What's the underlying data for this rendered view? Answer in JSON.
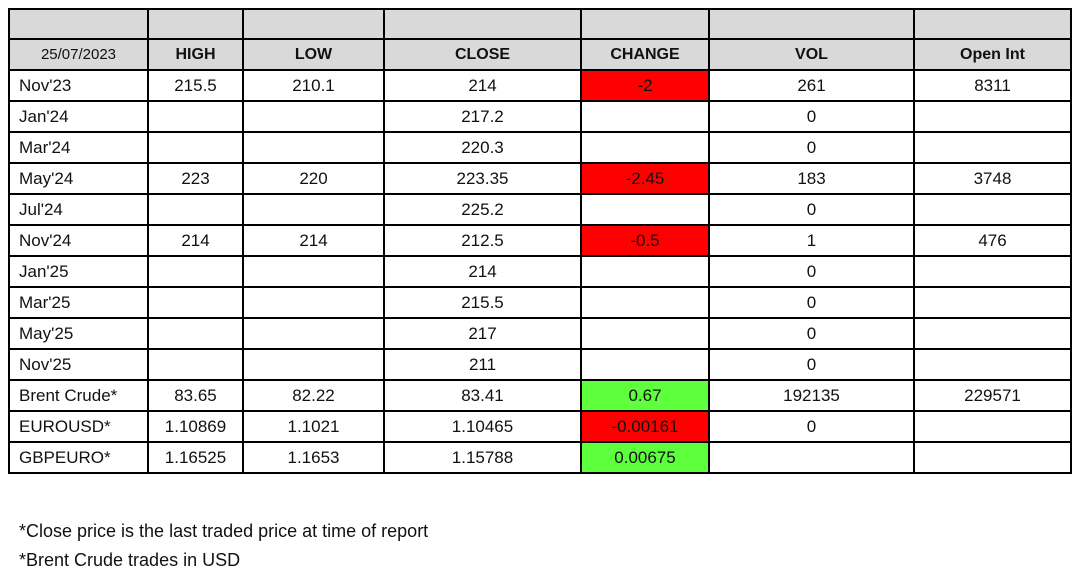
{
  "chart_data": {
    "type": "table",
    "date_header": "25/07/2023",
    "columns": [
      "HIGH",
      "LOW",
      "CLOSE",
      "CHANGE",
      "VOL",
      "Open Int"
    ],
    "rows": [
      {
        "label": "Nov'23",
        "high": "215.5",
        "low": "210.1",
        "close": "214",
        "change": "-2",
        "change_sign": "negative",
        "vol": "261",
        "open_int": "8311"
      },
      {
        "label": "Jan'24",
        "high": "",
        "low": "",
        "close": "217.2",
        "change": "",
        "change_sign": "none",
        "vol": "0",
        "open_int": ""
      },
      {
        "label": "Mar'24",
        "high": "",
        "low": "",
        "close": "220.3",
        "change": "",
        "change_sign": "none",
        "vol": "0",
        "open_int": ""
      },
      {
        "label": "May'24",
        "high": "223",
        "low": "220",
        "close": "223.35",
        "change": "-2.45",
        "change_sign": "negative",
        "vol": "183",
        "open_int": "3748"
      },
      {
        "label": "Jul'24",
        "high": "",
        "low": "",
        "close": "225.2",
        "change": "",
        "change_sign": "none",
        "vol": "0",
        "open_int": ""
      },
      {
        "label": "Nov'24",
        "high": "214",
        "low": "214",
        "close": "212.5",
        "change": "-0.5",
        "change_sign": "negative",
        "vol": "1",
        "open_int": "476"
      },
      {
        "label": "Jan'25",
        "high": "",
        "low": "",
        "close": "214",
        "change": "",
        "change_sign": "none",
        "vol": "0",
        "open_int": ""
      },
      {
        "label": "Mar'25",
        "high": "",
        "low": "",
        "close": "215.5",
        "change": "",
        "change_sign": "none",
        "vol": "0",
        "open_int": ""
      },
      {
        "label": "May'25",
        "high": "",
        "low": "",
        "close": "217",
        "change": "",
        "change_sign": "none",
        "vol": "0",
        "open_int": ""
      },
      {
        "label": "Nov'25",
        "high": "",
        "low": "",
        "close": "211",
        "change": "",
        "change_sign": "none",
        "vol": "0",
        "open_int": ""
      },
      {
        "label": "Brent Crude*",
        "high": "83.65",
        "low": "82.22",
        "close": "83.41",
        "change": "0.67",
        "change_sign": "positive",
        "vol": "192135",
        "open_int": "229571"
      },
      {
        "label": "EUROUSD*",
        "high": "1.10869",
        "low": "1.1021",
        "close": "1.10465",
        "change": "-0.00161",
        "change_sign": "negative",
        "vol": "0",
        "open_int": ""
      },
      {
        "label": "GBPEURO*",
        "high": "1.16525",
        "low": "1.1653",
        "close": "1.15788",
        "change": "0.00675",
        "change_sign": "positive",
        "vol": "",
        "open_int": ""
      }
    ],
    "footnotes": [
      "*Close price is the last traded price at time of report",
      "*Brent Crude trades in USD"
    ]
  },
  "colors": {
    "header_bg": "#d9d9d9",
    "negative_bg": "#ff0000",
    "positive_bg": "#5eff3d",
    "border": "#000000"
  }
}
